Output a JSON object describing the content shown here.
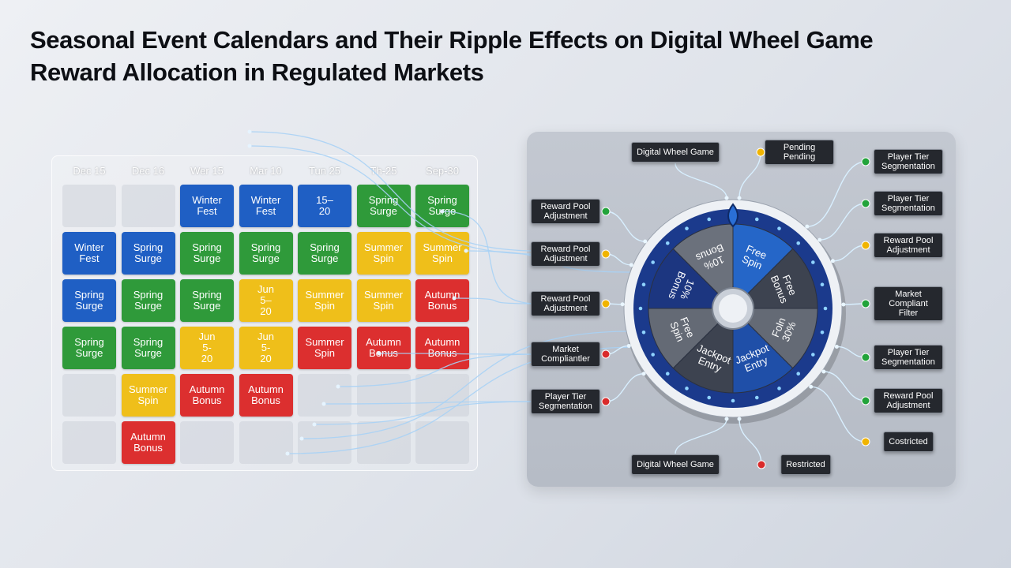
{
  "title": "Seasonal Event Calendars and Their Ripple Effects on Digital Wheel Game Reward Allocation in Regulated Markets",
  "calendar": {
    "columns": [
      "Dec 15",
      "Dec 16",
      "Wer 15",
      "Mar 10",
      "Tun 25",
      "Th-25",
      "Sep-30"
    ],
    "rows": [
      [
        null,
        null,
        {
          "label": "Winter Fest",
          "color": "#1f5fc4"
        },
        {
          "label": "Winter Fest",
          "color": "#1f5fc4"
        },
        {
          "label": "15–20",
          "color": "#1f5fc4"
        },
        {
          "label": "Spring Surge",
          "color": "#2f9a3a"
        },
        {
          "label": "Spring Surge",
          "color": "#2f9a3a"
        }
      ],
      [
        {
          "label": "Winter Fest",
          "color": "#1f5fc4"
        },
        {
          "label": "Spring Surge",
          "color": "#1f5fc4"
        },
        {
          "label": "Spring Surge",
          "color": "#2f9a3a"
        },
        {
          "label": "Spring Surge",
          "color": "#2f9a3a"
        },
        {
          "label": "Spring Surge",
          "color": "#2f9a3a"
        },
        {
          "label": "Summer Spin",
          "color": "#efbf1a"
        },
        {
          "label": "Summer Spin",
          "color": "#efbf1a"
        }
      ],
      [
        {
          "label": "Spring Surge",
          "color": "#1f5fc4"
        },
        {
          "label": "Spring Surge",
          "color": "#2f9a3a"
        },
        {
          "label": "Spring Surge",
          "color": "#2f9a3a"
        },
        {
          "label": "Jun 5–20",
          "color": "#efbf1a"
        },
        {
          "label": "Summer Spin",
          "color": "#efbf1a"
        },
        {
          "label": "Summer Spin",
          "color": "#efbf1a"
        },
        {
          "label": "Autumn Bonus",
          "color": "#dc2f2f"
        }
      ],
      [
        {
          "label": "Spring Surge",
          "color": "#2f9a3a"
        },
        {
          "label": "Spring Surge",
          "color": "#2f9a3a"
        },
        {
          "label": "Jun 5-20",
          "color": "#efbf1a"
        },
        {
          "label": "Jun 5-20",
          "color": "#efbf1a"
        },
        {
          "label": "Summer Spin",
          "color": "#dc2f2f"
        },
        {
          "label": "Autumn Bonus",
          "color": "#dc2f2f"
        },
        {
          "label": "Autumn Bonus",
          "color": "#dc2f2f"
        }
      ],
      [
        null,
        {
          "label": "Summer Spin",
          "color": "#efbf1a"
        },
        {
          "label": "Autumn Bonus",
          "color": "#dc2f2f"
        },
        {
          "label": "Autumn Bonus",
          "color": "#dc2f2f"
        },
        null,
        null,
        null
      ],
      [
        null,
        {
          "label": "Autumn Bonus",
          "color": "#dc2f2f"
        },
        null,
        null,
        null,
        null,
        null
      ]
    ]
  },
  "wheel": {
    "segments": [
      {
        "label": "Free Spin",
        "color": "#2566c8"
      },
      {
        "label": "Free Bonus",
        "color": "#3d4350"
      },
      {
        "label": "Foln 30%",
        "color": "#646a75"
      },
      {
        "label": "Jackpot Entry",
        "color": "#1f4fa8"
      },
      {
        "label": "Jackpot Entry",
        "color": "#3d4350"
      },
      {
        "label": "Free Spin",
        "color": "#646a75"
      },
      {
        "label": "10% Bonus",
        "color": "#1c3680"
      },
      {
        "label": "10% Bonus",
        "color": "#6b717c"
      }
    ]
  },
  "labels": {
    "top": [
      {
        "text": "Digital Wheel Game"
      },
      {
        "text": "Pending Pending",
        "dot": "#f0b400"
      }
    ],
    "left": [
      {
        "text": "Reward Pool Adjustment",
        "dot": "#22a33a"
      },
      {
        "text": "Reward Pool Adjustment",
        "dot": "#f0b400"
      },
      {
        "text": "Reward Pool Adjustment",
        "dot": "#f0b400"
      },
      {
        "text": "Market Compliantler",
        "dot": "#d92b2b"
      },
      {
        "text": "Player Tier Segmentation",
        "dot": "#d92b2b"
      }
    ],
    "right": [
      {
        "text": "Player Tier Segmentation",
        "dot": "#22a33a"
      },
      {
        "text": "Player Tier Segmentation",
        "dot": "#22a33a"
      },
      {
        "text": "Reward Pool Adjustment",
        "dot": "#f0b400"
      },
      {
        "text": "Market Compliant Filter",
        "dot": "#22a33a"
      },
      {
        "text": "Player Tier Segmentation",
        "dot": "#22a33a"
      },
      {
        "text": "Reward Pool Adjustment",
        "dot": "#22a33a"
      },
      {
        "text": "Costricted",
        "dot": "#f0b400"
      }
    ],
    "bottom": [
      {
        "text": "Digital Wheel Game"
      },
      {
        "text": "Restricted",
        "dot": "#d92b2b"
      }
    ]
  }
}
